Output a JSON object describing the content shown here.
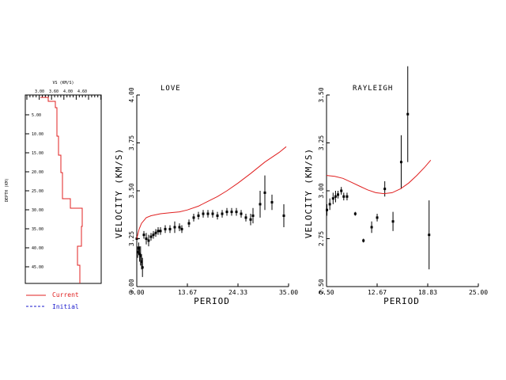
{
  "legend": {
    "current_label": "Current",
    "initial_label": "Initial",
    "current_color": "#e02020",
    "initial_color": "#1a1acc"
  },
  "profile": {
    "title": "VS (KM/S)",
    "ylabel": "DEPTH (KM)",
    "x_ticks": [
      "3.00",
      "3.60",
      "4.00",
      "4.60"
    ],
    "y_ticks": [
      "5.00",
      "10.00",
      "15.00",
      "20.00",
      "25.00",
      "30.00",
      "35.00",
      "40.00",
      "45.00"
    ],
    "line_color": "#e02020"
  },
  "chart_data": [
    {
      "type": "scatter",
      "title": "LOVE",
      "xlabel": "PERIOD",
      "ylabel": "VELOCITY (KM/S)",
      "xlim": [
        3.0,
        35.0
      ],
      "ylim": [
        3.0,
        4.0
      ],
      "x_ticks": [
        "3.00",
        "13.67",
        "24.33",
        "35.00"
      ],
      "y_ticks": [
        "3.00",
        "3.25",
        "3.50",
        "3.75",
        "4.00"
      ],
      "observed": {
        "x": [
          3.0,
          3.2,
          3.4,
          3.6,
          3.8,
          4.0,
          4.2,
          4.5,
          5.0,
          5.5,
          6.0,
          6.5,
          7.0,
          7.5,
          8.0,
          9.0,
          10.0,
          11.0,
          12.0,
          12.5,
          14.0,
          15.0,
          16.0,
          17.0,
          18.0,
          19.0,
          20.0,
          21.0,
          22.0,
          23.0,
          24.0,
          25.0,
          26.0,
          27.0,
          27.5,
          29.0,
          30.0,
          31.5,
          34.0
        ],
        "y": [
          3.25,
          3.18,
          3.2,
          3.17,
          3.16,
          3.13,
          3.1,
          3.27,
          3.25,
          3.24,
          3.26,
          3.27,
          3.28,
          3.29,
          3.29,
          3.3,
          3.3,
          3.31,
          3.31,
          3.3,
          3.33,
          3.36,
          3.37,
          3.38,
          3.38,
          3.38,
          3.37,
          3.38,
          3.39,
          3.39,
          3.39,
          3.38,
          3.36,
          3.35,
          3.37,
          3.43,
          3.49,
          3.44,
          3.37
        ],
        "err": [
          0.03,
          0.03,
          0.03,
          0.04,
          0.05,
          0.04,
          0.05,
          0.02,
          0.03,
          0.03,
          0.02,
          0.02,
          0.02,
          0.02,
          0.02,
          0.02,
          0.02,
          0.03,
          0.02,
          0.02,
          0.02,
          0.02,
          0.02,
          0.02,
          0.02,
          0.02,
          0.02,
          0.02,
          0.02,
          0.02,
          0.02,
          0.02,
          0.02,
          0.03,
          0.04,
          0.07,
          0.09,
          0.04,
          0.06
        ]
      },
      "predicted": {
        "x": [
          3.0,
          3.5,
          4.0,
          5.0,
          6.0,
          8.0,
          10.0,
          12.0,
          13.67,
          16.0,
          18.0,
          20.0,
          22.0,
          24.33,
          27.0,
          30.0,
          33.0,
          34.5
        ],
        "y": [
          3.25,
          3.3,
          3.33,
          3.36,
          3.37,
          3.38,
          3.385,
          3.39,
          3.4,
          3.42,
          3.445,
          3.47,
          3.5,
          3.54,
          3.59,
          3.65,
          3.7,
          3.73
        ]
      }
    },
    {
      "type": "scatter",
      "title": "RAYLEIGH",
      "xlabel": "PERIOD",
      "ylabel": "VELOCITY (KM/S)",
      "xlim": [
        6.5,
        25.0
      ],
      "ylim": [
        2.5,
        3.5
      ],
      "x_ticks": [
        "6.50",
        "12.67",
        "18.83",
        "25.00"
      ],
      "y_ticks": [
        "2.50",
        "2.75",
        "3.00",
        "3.25",
        "3.50"
      ],
      "observed": {
        "x": [
          6.55,
          6.9,
          7.3,
          7.6,
          7.9,
          8.3,
          8.6,
          9.0,
          10.0,
          11.0,
          12.0,
          12.67,
          13.6,
          14.6,
          15.6,
          16.4,
          19.0
        ],
        "y": [
          2.9,
          2.93,
          2.96,
          2.97,
          2.98,
          3.0,
          2.97,
          2.97,
          2.88,
          2.74,
          2.81,
          2.86,
          3.01,
          2.84,
          3.15,
          3.4,
          2.77
        ],
        "err": [
          0.03,
          0.03,
          0.03,
          0.03,
          0.02,
          0.02,
          0.02,
          0.02,
          0.01,
          0.01,
          0.03,
          0.02,
          0.04,
          0.05,
          0.14,
          0.25,
          0.18
        ]
      },
      "predicted": {
        "x": [
          6.5,
          7.5,
          8.5,
          9.5,
          10.5,
          11.5,
          12.5,
          13.5,
          14.5,
          15.5,
          16.5,
          17.5,
          18.5,
          19.2
        ],
        "y": [
          3.08,
          3.075,
          3.065,
          3.045,
          3.025,
          3.005,
          2.99,
          2.985,
          2.99,
          3.01,
          3.04,
          3.08,
          3.125,
          3.16
        ]
      }
    }
  ]
}
